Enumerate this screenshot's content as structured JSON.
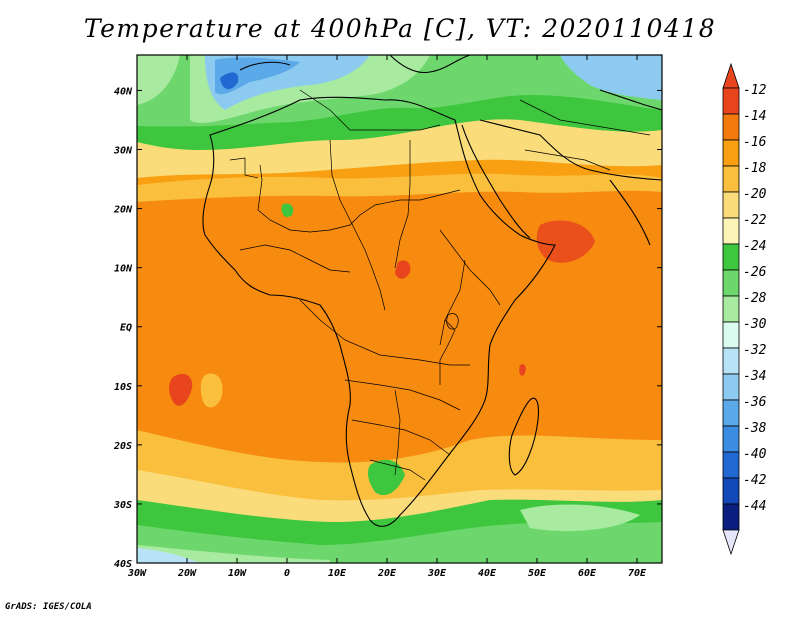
{
  "title": "Temperature at 400hPa [C], VT: 2020110418",
  "credit": "GrADS: IGES/COLA",
  "map": {
    "lon_range": [
      -30,
      75
    ],
    "lat_range": [
      -40,
      46
    ],
    "lon_labels": [
      "30W",
      "20W",
      "10W",
      "0",
      "10E",
      "20E",
      "30E",
      "40E",
      "50E",
      "60E",
      "70E"
    ],
    "lat_labels": [
      "40N",
      "30N",
      "20N",
      "10N",
      "EQ",
      "10S",
      "20S",
      "30S",
      "40S"
    ]
  },
  "colorbar": {
    "labels": [
      "-12",
      "-14",
      "-16",
      "-18",
      "-20",
      "-22",
      "-24",
      "-26",
      "-28",
      "-30",
      "-32",
      "-34",
      "-36",
      "-38",
      "-40",
      "-42",
      "-44"
    ],
    "colors": [
      "#e8451e",
      "#f57a0c",
      "#f8a012",
      "#fbbf3e",
      "#fbdc7a",
      "#fdf5b8",
      "#3ec73e",
      "#6dd76d",
      "#a8eaa0",
      "#dbfbf0",
      "#b8e2f5",
      "#8ccaf0",
      "#5ba9e8",
      "#3a8de0",
      "#2168d0",
      "#1248b8",
      "#0a1e80"
    ],
    "top_arrow_color": "#e8451e",
    "bottom_arrow_color": "#e6e6fa"
  }
}
